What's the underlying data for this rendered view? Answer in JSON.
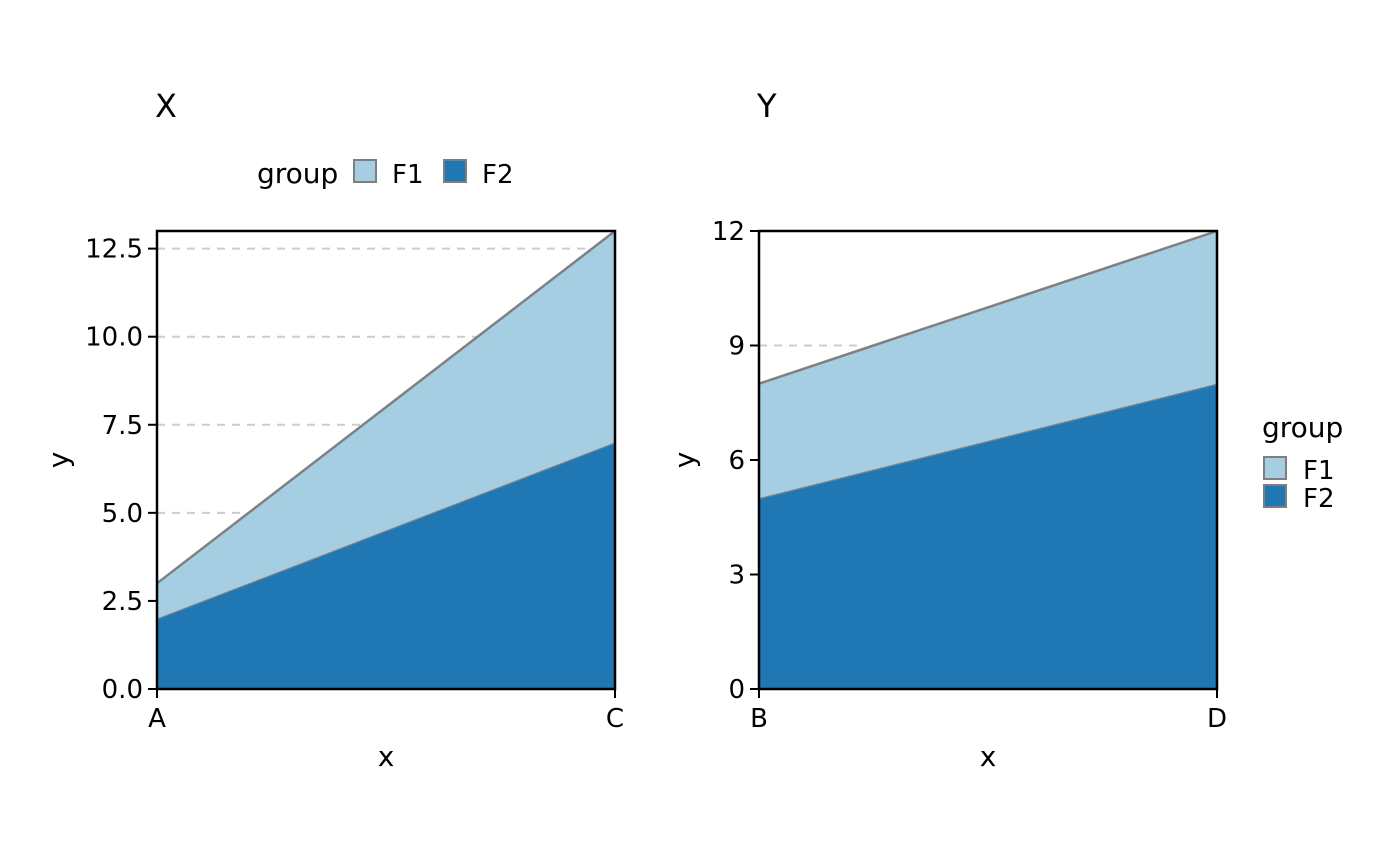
{
  "chart_data": [
    {
      "type": "area",
      "stacked": true,
      "title": "X",
      "xlabel": "x",
      "ylabel": "y",
      "categories": [
        "A",
        "C"
      ],
      "yticks": [
        "0.0",
        "2.5",
        "5.0",
        "7.5",
        "10.0",
        "12.5"
      ],
      "ylim": [
        0,
        13
      ],
      "grid": true,
      "legend": {
        "title": "group",
        "position": "top",
        "entries": [
          "F1",
          "F2"
        ]
      },
      "series": [
        {
          "name": "F1",
          "values": [
            1,
            6
          ],
          "color": "#a6cee3"
        },
        {
          "name": "F2",
          "values": [
            2,
            7
          ],
          "color": "#1f78b4"
        }
      ]
    },
    {
      "type": "area",
      "stacked": true,
      "title": "Y",
      "xlabel": "x",
      "ylabel": "y",
      "categories": [
        "B",
        "D"
      ],
      "yticks": [
        "0",
        "3",
        "6",
        "9",
        "12"
      ],
      "ylim": [
        0,
        12
      ],
      "grid": true,
      "legend": {
        "title": "group",
        "position": "right",
        "entries": [
          "F1",
          "F2"
        ]
      },
      "series": [
        {
          "name": "F1",
          "values": [
            3,
            4
          ],
          "color": "#a6cee3"
        },
        {
          "name": "F2",
          "values": [
            5,
            8
          ],
          "color": "#1f78b4"
        }
      ]
    }
  ]
}
